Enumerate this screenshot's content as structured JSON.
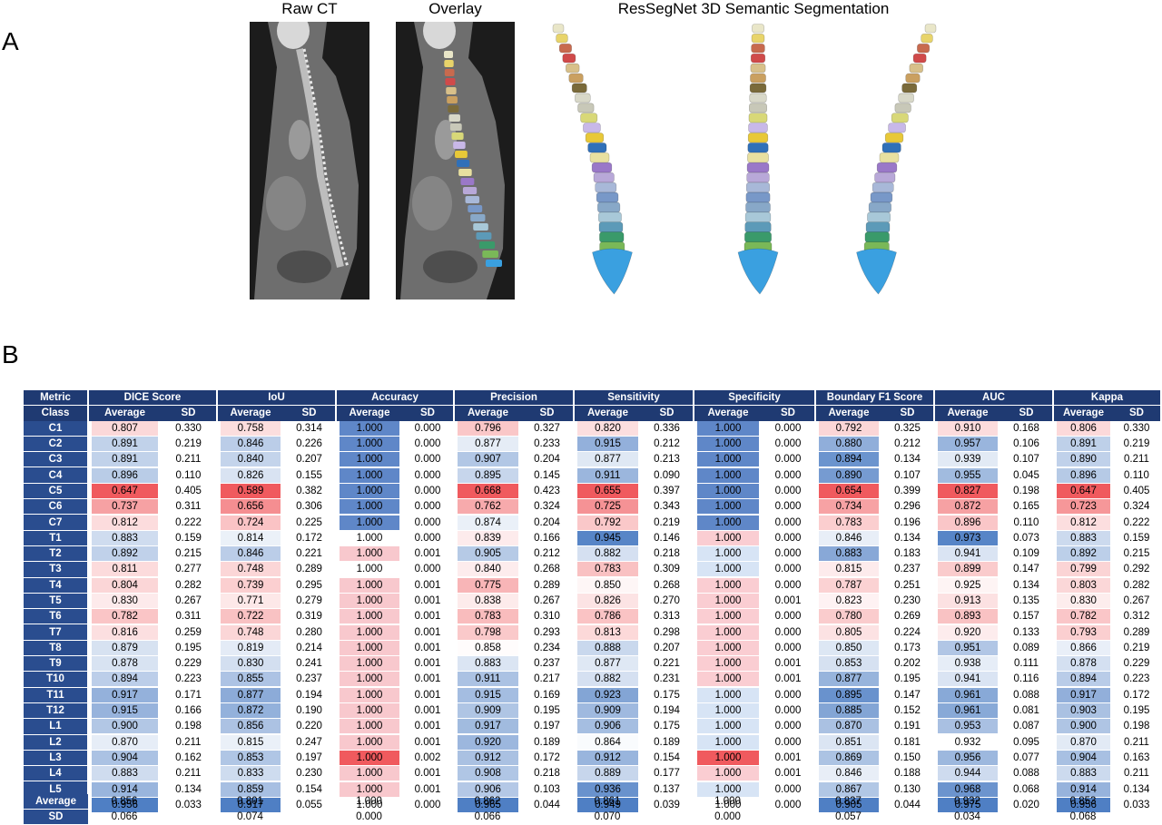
{
  "panel_a_label": "A",
  "panel_b_label": "B",
  "images": {
    "raw_ct_title": "Raw CT",
    "overlay_title": "Overlay",
    "seg_title": "ResSegNet 3D Semantic Segmentation"
  },
  "vertebra_colors": [
    "#e9e6c8",
    "#e8d46a",
    "#c86a4e",
    "#d04a4a",
    "#d8c08a",
    "#caa060",
    "#7a6a3a",
    "#d8d8c8",
    "#c8c8b8",
    "#d8d878",
    "#c8b8e8",
    "#e8c838",
    "#3070b8",
    "#e8e0a0",
    "#9a78c8",
    "#b8a8d8",
    "#a8b8d8",
    "#7898c8",
    "#88a8c8",
    "#a8c8d8",
    "#5c9ab8",
    "#3a9a6a",
    "#7ab858",
    "#3aa0e0"
  ],
  "table": {
    "metric_header": "Metric",
    "class_header": "Class",
    "average_label": "Average",
    "sd_label": "SD",
    "metrics": [
      "DICE Score",
      "IoU",
      "Accuracy",
      "Precision",
      "Sensitivity",
      "Specificity",
      "Boundary F1 Score",
      "AUC",
      "Kappa"
    ],
    "rows": [
      {
        "cls": "C1",
        "vals": [
          [
            "0.807",
            "0.330"
          ],
          [
            "0.758",
            "0.314"
          ],
          [
            "1.000",
            "0.000"
          ],
          [
            "0.796",
            "0.327"
          ],
          [
            "0.820",
            "0.336"
          ],
          [
            "1.000",
            "0.000"
          ],
          [
            "0.792",
            "0.325"
          ],
          [
            "0.910",
            "0.168"
          ],
          [
            "0.806",
            "0.330"
          ]
        ]
      },
      {
        "cls": "C2",
        "vals": [
          [
            "0.891",
            "0.219"
          ],
          [
            "0.846",
            "0.226"
          ],
          [
            "1.000",
            "0.000"
          ],
          [
            "0.877",
            "0.233"
          ],
          [
            "0.915",
            "0.212"
          ],
          [
            "1.000",
            "0.000"
          ],
          [
            "0.880",
            "0.212"
          ],
          [
            "0.957",
            "0.106"
          ],
          [
            "0.891",
            "0.219"
          ]
        ]
      },
      {
        "cls": "C3",
        "vals": [
          [
            "0.891",
            "0.211"
          ],
          [
            "0.840",
            "0.207"
          ],
          [
            "1.000",
            "0.000"
          ],
          [
            "0.907",
            "0.204"
          ],
          [
            "0.877",
            "0.213"
          ],
          [
            "1.000",
            "0.000"
          ],
          [
            "0.894",
            "0.134"
          ],
          [
            "0.939",
            "0.107"
          ],
          [
            "0.890",
            "0.211"
          ]
        ]
      },
      {
        "cls": "C4",
        "vals": [
          [
            "0.896",
            "0.110"
          ],
          [
            "0.826",
            "0.155"
          ],
          [
            "1.000",
            "0.000"
          ],
          [
            "0.895",
            "0.145"
          ],
          [
            "0.911",
            "0.090"
          ],
          [
            "1.000",
            "0.000"
          ],
          [
            "0.890",
            "0.107"
          ],
          [
            "0.955",
            "0.045"
          ],
          [
            "0.896",
            "0.110"
          ]
        ]
      },
      {
        "cls": "C5",
        "vals": [
          [
            "0.647",
            "0.405"
          ],
          [
            "0.589",
            "0.382"
          ],
          [
            "1.000",
            "0.000"
          ],
          [
            "0.668",
            "0.423"
          ],
          [
            "0.655",
            "0.397"
          ],
          [
            "1.000",
            "0.000"
          ],
          [
            "0.654",
            "0.399"
          ],
          [
            "0.827",
            "0.198"
          ],
          [
            "0.647",
            "0.405"
          ]
        ]
      },
      {
        "cls": "C6",
        "vals": [
          [
            "0.737",
            "0.311"
          ],
          [
            "0.656",
            "0.306"
          ],
          [
            "1.000",
            "0.000"
          ],
          [
            "0.762",
            "0.324"
          ],
          [
            "0.725",
            "0.343"
          ],
          [
            "1.000",
            "0.000"
          ],
          [
            "0.734",
            "0.296"
          ],
          [
            "0.872",
            "0.165"
          ],
          [
            "0.723",
            "0.324"
          ]
        ]
      },
      {
        "cls": "C7",
        "vals": [
          [
            "0.812",
            "0.222"
          ],
          [
            "0.724",
            "0.225"
          ],
          [
            "1.000",
            "0.000"
          ],
          [
            "0.874",
            "0.204"
          ],
          [
            "0.792",
            "0.219"
          ],
          [
            "1.000",
            "0.000"
          ],
          [
            "0.783",
            "0.196"
          ],
          [
            "0.896",
            "0.110"
          ],
          [
            "0.812",
            "0.222"
          ]
        ]
      },
      {
        "cls": "T1",
        "vals": [
          [
            "0.883",
            "0.159"
          ],
          [
            "0.814",
            "0.172"
          ],
          [
            "1.000",
            "0.000"
          ],
          [
            "0.839",
            "0.166"
          ],
          [
            "0.945",
            "0.146"
          ],
          [
            "1.000",
            "0.000"
          ],
          [
            "0.846",
            "0.134"
          ],
          [
            "0.973",
            "0.073"
          ],
          [
            "0.883",
            "0.159"
          ]
        ]
      },
      {
        "cls": "T2",
        "vals": [
          [
            "0.892",
            "0.215"
          ],
          [
            "0.846",
            "0.221"
          ],
          [
            "1.000",
            "0.001"
          ],
          [
            "0.905",
            "0.212"
          ],
          [
            "0.882",
            "0.218"
          ],
          [
            "1.000",
            "0.000"
          ],
          [
            "0.883",
            "0.183"
          ],
          [
            "0.941",
            "0.109"
          ],
          [
            "0.892",
            "0.215"
          ]
        ]
      },
      {
        "cls": "T3",
        "vals": [
          [
            "0.811",
            "0.277"
          ],
          [
            "0.748",
            "0.289"
          ],
          [
            "1.000",
            "0.000"
          ],
          [
            "0.840",
            "0.268"
          ],
          [
            "0.783",
            "0.309"
          ],
          [
            "1.000",
            "0.000"
          ],
          [
            "0.815",
            "0.237"
          ],
          [
            "0.899",
            "0.147"
          ],
          [
            "0.799",
            "0.292"
          ]
        ]
      },
      {
        "cls": "T4",
        "vals": [
          [
            "0.804",
            "0.282"
          ],
          [
            "0.739",
            "0.295"
          ],
          [
            "1.000",
            "0.001"
          ],
          [
            "0.775",
            "0.289"
          ],
          [
            "0.850",
            "0.268"
          ],
          [
            "1.000",
            "0.000"
          ],
          [
            "0.787",
            "0.251"
          ],
          [
            "0.925",
            "0.134"
          ],
          [
            "0.803",
            "0.282"
          ]
        ]
      },
      {
        "cls": "T5",
        "vals": [
          [
            "0.830",
            "0.267"
          ],
          [
            "0.771",
            "0.279"
          ],
          [
            "1.000",
            "0.001"
          ],
          [
            "0.838",
            "0.267"
          ],
          [
            "0.826",
            "0.270"
          ],
          [
            "1.000",
            "0.001"
          ],
          [
            "0.823",
            "0.230"
          ],
          [
            "0.913",
            "0.135"
          ],
          [
            "0.830",
            "0.267"
          ]
        ]
      },
      {
        "cls": "T6",
        "vals": [
          [
            "0.782",
            "0.311"
          ],
          [
            "0.722",
            "0.319"
          ],
          [
            "1.000",
            "0.001"
          ],
          [
            "0.783",
            "0.310"
          ],
          [
            "0.786",
            "0.313"
          ],
          [
            "1.000",
            "0.000"
          ],
          [
            "0.780",
            "0.269"
          ],
          [
            "0.893",
            "0.157"
          ],
          [
            "0.782",
            "0.312"
          ]
        ]
      },
      {
        "cls": "T7",
        "vals": [
          [
            "0.816",
            "0.259"
          ],
          [
            "0.748",
            "0.280"
          ],
          [
            "1.000",
            "0.001"
          ],
          [
            "0.798",
            "0.293"
          ],
          [
            "0.813",
            "0.298"
          ],
          [
            "1.000",
            "0.000"
          ],
          [
            "0.805",
            "0.224"
          ],
          [
            "0.920",
            "0.133"
          ],
          [
            "0.793",
            "0.289"
          ]
        ]
      },
      {
        "cls": "T8",
        "vals": [
          [
            "0.879",
            "0.195"
          ],
          [
            "0.819",
            "0.214"
          ],
          [
            "1.000",
            "0.001"
          ],
          [
            "0.858",
            "0.234"
          ],
          [
            "0.888",
            "0.207"
          ],
          [
            "1.000",
            "0.000"
          ],
          [
            "0.850",
            "0.173"
          ],
          [
            "0.951",
            "0.089"
          ],
          [
            "0.866",
            "0.219"
          ]
        ]
      },
      {
        "cls": "T9",
        "vals": [
          [
            "0.878",
            "0.229"
          ],
          [
            "0.830",
            "0.241"
          ],
          [
            "1.000",
            "0.001"
          ],
          [
            "0.883",
            "0.237"
          ],
          [
            "0.877",
            "0.221"
          ],
          [
            "1.000",
            "0.001"
          ],
          [
            "0.853",
            "0.202"
          ],
          [
            "0.938",
            "0.111"
          ],
          [
            "0.878",
            "0.229"
          ]
        ]
      },
      {
        "cls": "T10",
        "vals": [
          [
            "0.894",
            "0.223"
          ],
          [
            "0.855",
            "0.237"
          ],
          [
            "1.000",
            "0.001"
          ],
          [
            "0.911",
            "0.217"
          ],
          [
            "0.882",
            "0.231"
          ],
          [
            "1.000",
            "0.001"
          ],
          [
            "0.877",
            "0.195"
          ],
          [
            "0.941",
            "0.116"
          ],
          [
            "0.894",
            "0.223"
          ]
        ]
      },
      {
        "cls": "T11",
        "vals": [
          [
            "0.917",
            "0.171"
          ],
          [
            "0.877",
            "0.194"
          ],
          [
            "1.000",
            "0.001"
          ],
          [
            "0.915",
            "0.169"
          ],
          [
            "0.923",
            "0.175"
          ],
          [
            "1.000",
            "0.000"
          ],
          [
            "0.895",
            "0.147"
          ],
          [
            "0.961",
            "0.088"
          ],
          [
            "0.917",
            "0.172"
          ]
        ]
      },
      {
        "cls": "T12",
        "vals": [
          [
            "0.915",
            "0.166"
          ],
          [
            "0.872",
            "0.190"
          ],
          [
            "1.000",
            "0.001"
          ],
          [
            "0.909",
            "0.195"
          ],
          [
            "0.909",
            "0.194"
          ],
          [
            "1.000",
            "0.000"
          ],
          [
            "0.885",
            "0.152"
          ],
          [
            "0.961",
            "0.081"
          ],
          [
            "0.903",
            "0.195"
          ]
        ]
      },
      {
        "cls": "L1",
        "vals": [
          [
            "0.900",
            "0.198"
          ],
          [
            "0.856",
            "0.220"
          ],
          [
            "1.000",
            "0.001"
          ],
          [
            "0.917",
            "0.197"
          ],
          [
            "0.906",
            "0.175"
          ],
          [
            "1.000",
            "0.000"
          ],
          [
            "0.870",
            "0.191"
          ],
          [
            "0.953",
            "0.087"
          ],
          [
            "0.900",
            "0.198"
          ]
        ]
      },
      {
        "cls": "L2",
        "vals": [
          [
            "0.870",
            "0.211"
          ],
          [
            "0.815",
            "0.247"
          ],
          [
            "1.000",
            "0.001"
          ],
          [
            "0.920",
            "0.189"
          ],
          [
            "0.864",
            "0.189"
          ],
          [
            "1.000",
            "0.000"
          ],
          [
            "0.851",
            "0.181"
          ],
          [
            "0.932",
            "0.095"
          ],
          [
            "0.870",
            "0.211"
          ]
        ]
      },
      {
        "cls": "L3",
        "vals": [
          [
            "0.904",
            "0.162"
          ],
          [
            "0.853",
            "0.197"
          ],
          [
            "1.000",
            "0.002"
          ],
          [
            "0.912",
            "0.172"
          ],
          [
            "0.912",
            "0.154"
          ],
          [
            "1.000",
            "0.001"
          ],
          [
            "0.869",
            "0.150"
          ],
          [
            "0.956",
            "0.077"
          ],
          [
            "0.904",
            "0.163"
          ]
        ]
      },
      {
        "cls": "L4",
        "vals": [
          [
            "0.883",
            "0.211"
          ],
          [
            "0.833",
            "0.230"
          ],
          [
            "1.000",
            "0.001"
          ],
          [
            "0.908",
            "0.218"
          ],
          [
            "0.889",
            "0.177"
          ],
          [
            "1.000",
            "0.001"
          ],
          [
            "0.846",
            "0.188"
          ],
          [
            "0.944",
            "0.088"
          ],
          [
            "0.883",
            "0.211"
          ]
        ]
      },
      {
        "cls": "L5",
        "vals": [
          [
            "0.914",
            "0.134"
          ],
          [
            "0.859",
            "0.154"
          ],
          [
            "1.000",
            "0.001"
          ],
          [
            "0.906",
            "0.103"
          ],
          [
            "0.936",
            "0.137"
          ],
          [
            "1.000",
            "0.000"
          ],
          [
            "0.867",
            "0.130"
          ],
          [
            "0.968",
            "0.068"
          ],
          [
            "0.914",
            "0.134"
          ]
        ]
      },
      {
        "cls": "Sacrum",
        "vals": [
          [
            "0.956",
            "0.033"
          ],
          [
            "0.917",
            "0.055"
          ],
          [
            "1.000",
            "0.000"
          ],
          [
            "0.965",
            "0.044"
          ],
          [
            "0.949",
            "0.039"
          ],
          [
            "1.000",
            "0.000"
          ],
          [
            "0.905",
            "0.044"
          ],
          [
            "0.975",
            "0.020"
          ],
          [
            "0.956",
            "0.033"
          ]
        ]
      }
    ],
    "summary": {
      "average_row_label": "Average",
      "sd_row_label": "SD",
      "average_values": [
        "0.856",
        "0.801",
        "1.000",
        "0.862",
        "0.861",
        "1.000",
        "0.837",
        "0.932",
        "0.853"
      ],
      "sd_values": [
        "0.066",
        "0.074",
        "0.000",
        "0.066",
        "0.070",
        "0.000",
        "0.057",
        "0.034",
        "0.068"
      ]
    },
    "heat_colors": {
      "low": "#f05a5e",
      "mid": "#ffffff",
      "high": "#4f7fc4"
    }
  }
}
